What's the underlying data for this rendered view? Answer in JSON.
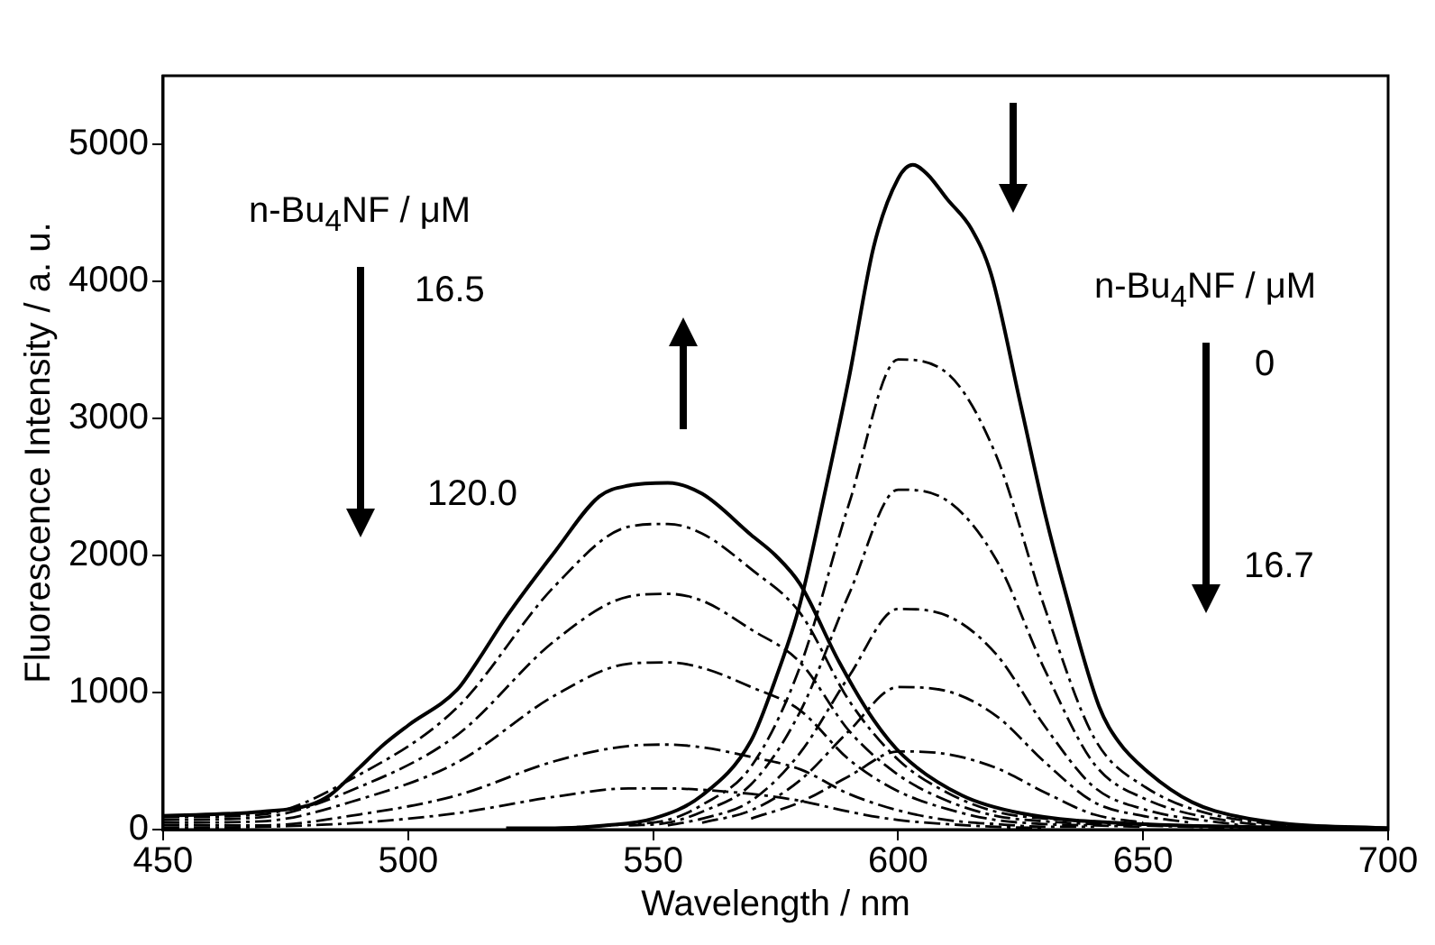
{
  "chart_data": {
    "type": "line",
    "xlabel": "Wavelength / nm",
    "ylabel": "Fluorescence Intensity / a. u.",
    "x": [
      450,
      470,
      490,
      510,
      530,
      545,
      553,
      560,
      570,
      580,
      590,
      600,
      610,
      620,
      630,
      640,
      650,
      670,
      700
    ],
    "xlim": [
      450,
      700
    ],
    "xticks": [
      450,
      500,
      550,
      600,
      650,
      700
    ],
    "ylim": [
      0,
      5500
    ],
    "yticks": [
      0,
      1000,
      2000,
      3000,
      4000,
      5000
    ],
    "grid": false,
    "legend": false,
    "marker": "none",
    "series": [
      {
        "color": "#000000",
        "line_style": "solid",
        "x": [
          450,
          470,
          480,
          484,
          490,
          495,
          500,
          510,
          514,
          520,
          530,
          539,
          545,
          553,
          560,
          570,
          575,
          580,
          588,
          595,
          601,
          613,
          625,
          650,
          700
        ],
        "values": [
          100,
          130,
          180,
          250,
          450,
          620,
          760,
          1020,
          1220,
          1550,
          2030,
          2430,
          2510,
          2530,
          2450,
          2150,
          2000,
          1790,
          1220,
          800,
          540,
          250,
          120,
          40,
          10
        ]
      },
      {
        "color": "#000000",
        "line_style": "dashed",
        "values": [
          90,
          110,
          400,
          890,
          1780,
          2210,
          2230,
          2160,
          1900,
          1580,
          940,
          510,
          270,
          130,
          80,
          60,
          40,
          20,
          0
        ]
      },
      {
        "color": "#000000",
        "line_style": "dashed",
        "x": [
          450,
          470,
          490,
          510,
          530,
          545,
          553,
          560,
          570,
          580,
          590,
          600,
          610,
          620,
          630,
          640,
          650,
          670
        ],
        "values": [
          70,
          90,
          310,
          690,
          1380,
          1700,
          1720,
          1670,
          1460,
          1220,
          720,
          400,
          210,
          100,
          60,
          40,
          30,
          10
        ]
      },
      {
        "color": "#000000",
        "line_style": "dashed",
        "x": [
          450,
          470,
          490,
          510,
          530,
          545,
          553,
          560,
          570,
          580,
          590,
          600,
          610,
          620,
          630,
          640,
          650
        ],
        "values": [
          50,
          60,
          220,
          490,
          980,
          1210,
          1220,
          1180,
          1040,
          870,
          510,
          280,
          150,
          70,
          40,
          30,
          20
        ]
      },
      {
        "color": "#000000",
        "line_style": "dashed",
        "x": [
          450,
          470,
          490,
          510,
          530,
          545,
          553,
          560,
          570,
          580,
          590,
          600,
          610,
          620,
          630,
          640
        ],
        "values": [
          30,
          30,
          110,
          250,
          500,
          610,
          620,
          600,
          530,
          440,
          260,
          140,
          70,
          40,
          20,
          20
        ]
      },
      {
        "color": "#000000",
        "line_style": "dashed",
        "x": [
          450,
          470,
          490,
          510,
          530,
          545,
          553,
          560,
          570,
          580,
          590,
          600,
          610,
          620,
          630
        ],
        "values": [
          10,
          20,
          50,
          120,
          240,
          300,
          300,
          290,
          260,
          210,
          130,
          70,
          40,
          20,
          10
        ]
      },
      {
        "color": "#000000",
        "line_style": "solid",
        "x": [
          520,
          530,
          540,
          550,
          560,
          570,
          575,
          580,
          585,
          590,
          595,
          600,
          603,
          606,
          610,
          615,
          619,
          625,
          630,
          634,
          641,
          645,
          651,
          660,
          670,
          680,
          700
        ],
        "values": [
          10,
          10,
          30,
          80,
          250,
          650,
          1100,
          1650,
          2450,
          3300,
          4250,
          4750,
          4850,
          4780,
          4600,
          4380,
          4050,
          3100,
          2300,
          1750,
          900,
          640,
          420,
          200,
          90,
          40,
          10
        ]
      },
      {
        "color": "#000000",
        "line_style": "dashed",
        "x": [
          530,
          545,
          553,
          560,
          570,
          580,
          590,
          600,
          610,
          620,
          630,
          640,
          650,
          670,
          700
        ],
        "values": [
          10,
          40,
          70,
          180,
          460,
          1190,
          2380,
          3430,
          3330,
          2730,
          1610,
          670,
          320,
          70,
          10
        ]
      },
      {
        "color": "#000000",
        "line_style": "dashed",
        "x": [
          545,
          553,
          560,
          570,
          580,
          590,
          600,
          610,
          620,
          630,
          640,
          650,
          670,
          680
        ],
        "values": [
          30,
          50,
          130,
          330,
          860,
          1720,
          2480,
          2400,
          1970,
          1160,
          480,
          230,
          50,
          30
        ]
      },
      {
        "color": "#000000",
        "line_style": "dashed",
        "x": [
          553,
          560,
          570,
          580,
          590,
          600,
          610,
          620,
          630,
          640,
          650,
          670
        ],
        "values": [
          30,
          80,
          210,
          560,
          1120,
          1610,
          1560,
          1280,
          750,
          310,
          150,
          30
        ]
      },
      {
        "color": "#000000",
        "line_style": "dashed",
        "x": [
          560,
          570,
          580,
          590,
          600,
          610,
          620,
          630,
          640,
          650,
          660
        ],
        "values": [
          50,
          140,
          360,
          720,
          1040,
          1010,
          830,
          490,
          200,
          100,
          50
        ]
      },
      {
        "color": "#000000",
        "line_style": "dashed",
        "x": [
          570,
          580,
          590,
          600,
          610,
          620,
          630,
          640,
          650
        ],
        "values": [
          80,
          200,
          390,
          570,
          550,
          450,
          270,
          110,
          50
        ]
      }
    ],
    "annotations": [
      "n-Bu$_{4}$NF / μM",
      "16.5",
      "120.0",
      "n-Bu$_{4}$NF / μM",
      "0",
      "16.7"
    ]
  }
}
